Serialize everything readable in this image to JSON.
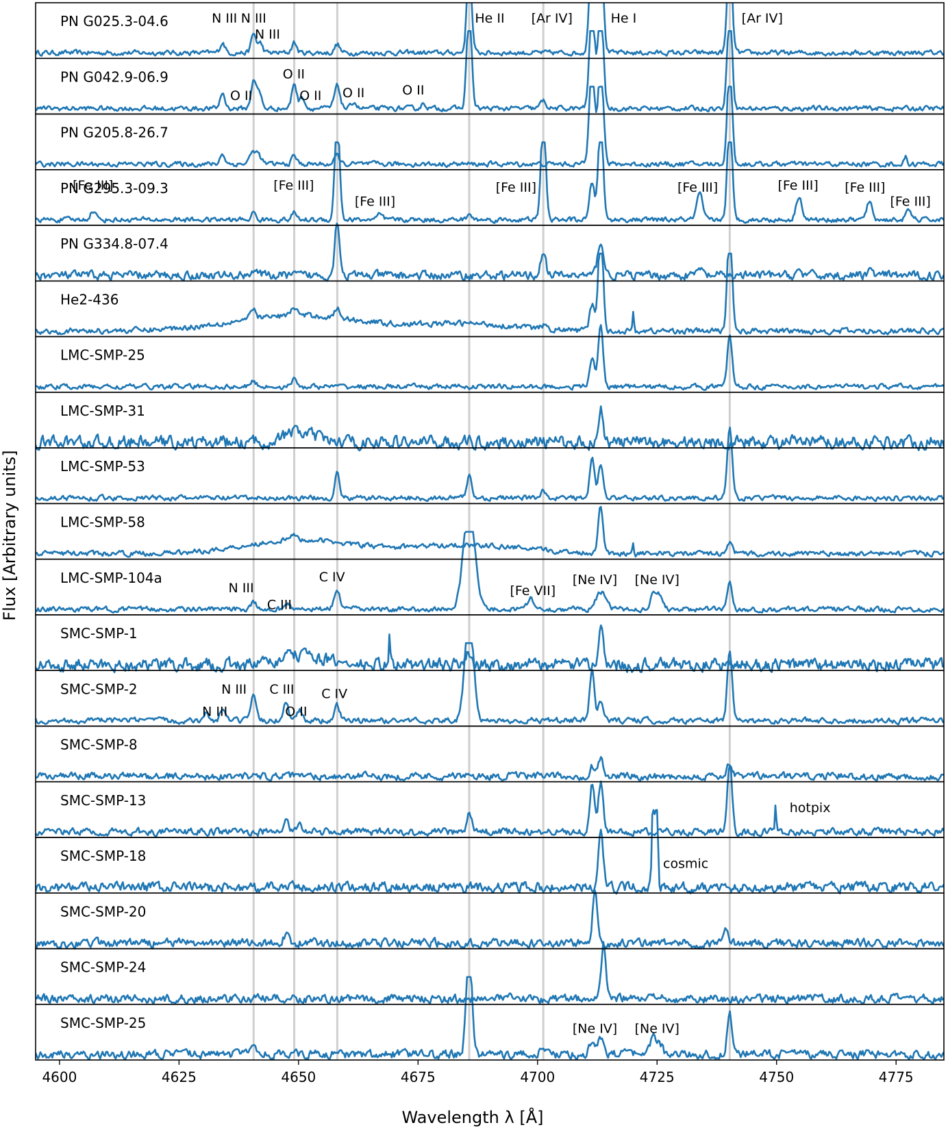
{
  "chart_data": {
    "type": "line",
    "xlabel": "Wavelength λ  [Å]",
    "ylabel": "Flux  [Arbitrary units]",
    "xlim": [
      4595,
      4785
    ],
    "xticks": [
      {
        "value": 4600,
        "label": "4600"
      },
      {
        "value": 4625,
        "label": "4625"
      },
      {
        "value": 4650,
        "label": "4650"
      },
      {
        "value": 4675,
        "label": "4675"
      },
      {
        "value": 4700,
        "label": "4700"
      },
      {
        "value": 4725,
        "label": "4725"
      },
      {
        "value": 4750,
        "label": "4750"
      },
      {
        "value": 4775,
        "label": "4775"
      }
    ],
    "reference_lines": [
      4640.6,
      4649.1,
      4658.1,
      4685.7,
      4701.2,
      4740.2
    ],
    "grid": false,
    "legend": "none",
    "line_color": "#1f77b4",
    "panels": [
      {
        "name": "PN G025.3-04.6",
        "noise": 0.035,
        "lines": [
          [
            4634.1,
            0.3,
            0.5
          ],
          [
            4640.6,
            0.55,
            0.5
          ],
          [
            4642.0,
            0.28,
            0.5
          ],
          [
            4649.1,
            0.3,
            0.5
          ],
          [
            4658.1,
            0.25,
            0.5
          ],
          [
            4685.7,
            2.5,
            0.5
          ],
          [
            4711.4,
            3.0,
            0.55
          ],
          [
            4713.2,
            3.0,
            0.55
          ],
          [
            4740.2,
            3.0,
            0.5
          ]
        ],
        "labels": [
          {
            "x": 4634.5,
            "text": "N III",
            "level": 0.84
          },
          {
            "x": 4640.6,
            "text": "N III",
            "level": 0.84
          },
          {
            "x": 4643.5,
            "text": "N III",
            "level": 0.55
          },
          {
            "x": 4690.0,
            "text": "He II",
            "level": 0.84
          },
          {
            "x": 4703.0,
            "text": "[Ar IV]",
            "level": 0.84
          },
          {
            "x": 4718.0,
            "text": "He I",
            "level": 0.84
          },
          {
            "x": 4747.0,
            "text": "[Ar IV]",
            "level": 0.84
          }
        ]
      },
      {
        "name": "PN G042.9-06.9",
        "noise": 0.035,
        "lines": [
          [
            4634.1,
            0.45,
            0.5
          ],
          [
            4640.6,
            0.85,
            0.5
          ],
          [
            4641.8,
            0.45,
            0.5
          ],
          [
            4649.1,
            0.75,
            0.5
          ],
          [
            4650.8,
            0.35,
            0.5
          ],
          [
            4658.1,
            0.65,
            0.6
          ],
          [
            4661.6,
            0.2,
            0.5
          ],
          [
            4676.2,
            0.15,
            0.5
          ],
          [
            4685.7,
            3.0,
            0.5
          ],
          [
            4701.2,
            0.22,
            0.6
          ],
          [
            4711.4,
            3.0,
            0.55
          ],
          [
            4713.2,
            3.0,
            0.55
          ],
          [
            4740.2,
            3.0,
            0.5
          ]
        ],
        "labels": [
          {
            "x": 4638.0,
            "text": "O II",
            "level": 0.45
          },
          {
            "x": 4649.0,
            "text": "O II",
            "level": 0.84
          },
          {
            "x": 4652.5,
            "text": "O II",
            "level": 0.45
          },
          {
            "x": 4661.5,
            "text": "O II",
            "level": 0.5
          },
          {
            "x": 4674.0,
            "text": "O II",
            "level": 0.55
          }
        ]
      },
      {
        "name": "PN G205.8-26.7",
        "noise": 0.035,
        "lines": [
          [
            4634.1,
            0.3,
            0.5
          ],
          [
            4640.6,
            0.35,
            0.8
          ],
          [
            4641.8,
            0.15,
            0.6
          ],
          [
            4649.1,
            0.25,
            0.5
          ],
          [
            4658.1,
            0.25,
            0.5
          ],
          [
            4711.4,
            3.0,
            0.55
          ],
          [
            4713.2,
            3.0,
            0.55
          ],
          [
            4740.2,
            3.0,
            0.5
          ],
          [
            4777.0,
            0.2,
            0.3
          ]
        ],
        "labels": []
      },
      {
        "name": "PN G295.3-09.3",
        "noise": 0.035,
        "lines": [
          [
            4607.0,
            0.25,
            0.6
          ],
          [
            4640.6,
            0.2,
            0.5
          ],
          [
            4649.1,
            0.2,
            0.5
          ],
          [
            4658.1,
            3.0,
            0.5
          ],
          [
            4667.0,
            0.15,
            0.5
          ],
          [
            4685.7,
            0.15,
            0.5
          ],
          [
            4701.2,
            3.0,
            0.5
          ],
          [
            4711.4,
            1.1,
            0.5
          ],
          [
            4713.2,
            3.0,
            0.5
          ],
          [
            4733.9,
            0.75,
            0.6
          ],
          [
            4740.2,
            3.0,
            0.5
          ],
          [
            4754.7,
            0.7,
            0.6
          ],
          [
            4769.4,
            0.5,
            0.6
          ],
          [
            4777.7,
            0.25,
            0.6
          ]
        ],
        "labels": [
          {
            "x": 4607.0,
            "text": "[Fe III]",
            "level": 0.84
          },
          {
            "x": 4649.0,
            "text": "[Fe III]",
            "level": 0.84
          },
          {
            "x": 4666.0,
            "text": "[Fe III]",
            "level": 0.55
          },
          {
            "x": 4695.5,
            "text": "[Fe III]",
            "level": 0.8
          },
          {
            "x": 4733.5,
            "text": "[Fe III]",
            "level": 0.8
          },
          {
            "x": 4754.5,
            "text": "[Fe III]",
            "level": 0.84
          },
          {
            "x": 4768.5,
            "text": "[Fe III]",
            "level": 0.8
          },
          {
            "x": 4778.0,
            "text": "[Fe III]",
            "level": 0.55
          }
        ]
      },
      {
        "name": "PN G334.8-07.4",
        "noise": 0.06,
        "lines": [
          [
            4640.6,
            0.15,
            0.8
          ],
          [
            4658.1,
            1.6,
            0.5
          ],
          [
            4701.2,
            0.75,
            0.5
          ],
          [
            4713.2,
            1.0,
            0.6
          ],
          [
            4733.9,
            0.2,
            0.5
          ],
          [
            4754.7,
            0.15,
            0.5
          ],
          [
            4769.4,
            0.15,
            0.5
          ]
        ],
        "labels": []
      },
      {
        "name": "He2-436",
        "noise": 0.04,
        "bumps": [
          [
            4650,
            0.45,
            14
          ],
          [
            4686,
            0.2,
            10
          ]
        ],
        "lines": [
          [
            4640.6,
            0.25,
            0.6
          ],
          [
            4649.1,
            0.25,
            0.6
          ],
          [
            4658.1,
            0.25,
            0.6
          ],
          [
            4701.2,
            0.1,
            0.5
          ],
          [
            4711.4,
            0.75,
            0.5
          ],
          [
            4713.2,
            3.0,
            0.5
          ],
          [
            4720.0,
            0.5,
            0.15
          ],
          [
            4740.2,
            3.0,
            0.5
          ]
        ],
        "labels": []
      },
      {
        "name": "LMC-SMP-25",
        "noise": 0.035,
        "lines": [
          [
            4640.6,
            0.15,
            0.6
          ],
          [
            4649.1,
            0.2,
            0.6
          ],
          [
            4711.4,
            0.85,
            0.5
          ],
          [
            4713.2,
            1.8,
            0.5
          ],
          [
            4740.2,
            1.5,
            0.5
          ]
        ],
        "labels": []
      },
      {
        "name": "LMC-SMP-31",
        "noise": 0.09,
        "bumps": [
          [
            4650,
            0.3,
            3.0
          ]
        ],
        "lines": [
          [
            4713.2,
            1.0,
            0.5
          ]
        ],
        "labels": []
      },
      {
        "name": "LMC-SMP-53",
        "noise": 0.035,
        "lines": [
          [
            4658.1,
            0.7,
            0.5
          ],
          [
            4685.7,
            0.65,
            0.5
          ],
          [
            4701.2,
            0.25,
            0.5
          ],
          [
            4711.4,
            1.1,
            0.5
          ],
          [
            4713.2,
            0.95,
            0.5
          ],
          [
            4740.2,
            2.0,
            0.5
          ]
        ],
        "labels": []
      },
      {
        "name": "LMC-SMP-58",
        "noise": 0.035,
        "bumps": [
          [
            4650,
            0.4,
            11
          ],
          [
            4685,
            0.25,
            12
          ]
        ],
        "lines": [
          [
            4649.1,
            0.15,
            0.6
          ],
          [
            4713.2,
            1.4,
            0.5
          ],
          [
            4720.0,
            0.35,
            0.15
          ],
          [
            4740.2,
            0.35,
            0.5
          ]
        ],
        "labels": []
      },
      {
        "name": "LMC-SMP-104a",
        "noise": 0.035,
        "lines": [
          [
            4640.6,
            0.18,
            0.6
          ],
          [
            4647.4,
            0.18,
            0.6
          ],
          [
            4658.1,
            0.55,
            0.6
          ],
          [
            4685.7,
            3.0,
            1.2
          ],
          [
            4698.5,
            0.35,
            0.6
          ],
          [
            4713.2,
            0.5,
            1.0
          ],
          [
            4724.2,
            0.5,
            0.6
          ],
          [
            4725.5,
            0.4,
            0.6
          ],
          [
            4740.2,
            0.8,
            0.5
          ]
        ],
        "labels": [
          {
            "x": 4638.0,
            "text": "N III",
            "level": 0.6
          },
          {
            "x": 4646.0,
            "text": "C III",
            "level": 0.3
          },
          {
            "x": 4657.0,
            "text": "C IV",
            "level": 0.8
          },
          {
            "x": 4699.0,
            "text": "[Fe VII]",
            "level": 0.55
          },
          {
            "x": 4712.0,
            "text": "[Ne IV]",
            "level": 0.75
          },
          {
            "x": 4725.0,
            "text": "[Ne IV]",
            "level": 0.75
          }
        ]
      },
      {
        "name": "SMC-SMP-1",
        "noise": 0.09,
        "bumps": [
          [
            4651,
            0.3,
            4
          ]
        ],
        "lines": [
          [
            4669.0,
            0.8,
            0.15
          ],
          [
            4685.7,
            0.4,
            0.5
          ],
          [
            4713.2,
            1.2,
            0.5
          ]
        ],
        "labels": []
      },
      {
        "name": "SMC-SMP-2",
        "noise": 0.04,
        "lines": [
          [
            4630.8,
            0.2,
            0.5
          ],
          [
            4634.1,
            0.3,
            0.5
          ],
          [
            4640.6,
            0.7,
            0.5
          ],
          [
            4647.4,
            0.6,
            0.5
          ],
          [
            4650.2,
            0.3,
            0.6
          ],
          [
            4658.1,
            0.45,
            0.5
          ],
          [
            4685.7,
            3.0,
            0.9
          ],
          [
            4711.4,
            1.4,
            0.5
          ],
          [
            4713.2,
            0.6,
            0.5
          ],
          [
            4740.2,
            2.0,
            0.5
          ]
        ],
        "labels": [
          {
            "x": 4632.5,
            "text": "N III",
            "level": 0.38
          },
          {
            "x": 4636.5,
            "text": "N III",
            "level": 0.78
          },
          {
            "x": 4646.5,
            "text": "C III",
            "level": 0.78
          },
          {
            "x": 4649.5,
            "text": "O II",
            "level": 0.38
          },
          {
            "x": 4657.5,
            "text": "C IV",
            "level": 0.7
          }
        ]
      },
      {
        "name": "SMC-SMP-8",
        "noise": 0.05,
        "lines": [
          [
            4711.4,
            0.3,
            0.5
          ],
          [
            4713.2,
            0.55,
            0.5
          ],
          [
            4740.2,
            0.35,
            0.5
          ]
        ],
        "labels": []
      },
      {
        "name": "SMC-SMP-13",
        "noise": 0.05,
        "lines": [
          [
            4647.4,
            0.35,
            0.5
          ],
          [
            4650.2,
            0.3,
            0.5
          ],
          [
            4685.7,
            0.6,
            0.5
          ],
          [
            4711.4,
            1.4,
            0.5
          ],
          [
            4713.2,
            1.4,
            0.5
          ],
          [
            4740.2,
            2.0,
            0.5
          ],
          [
            4749.8,
            0.9,
            0.15
          ]
        ],
        "labels": [
          {
            "x": 4757.0,
            "text": "hotpix",
            "level": 0.65
          }
        ]
      },
      {
        "name": "SMC-SMP-18",
        "noise": 0.07,
        "lines": [
          [
            4713.2,
            1.6,
            0.5
          ],
          [
            4724.2,
            3.0,
            0.25
          ],
          [
            4724.9,
            3.0,
            0.25
          ]
        ],
        "labels": [
          {
            "x": 4731.0,
            "text": "cosmic",
            "level": 0.65
          }
        ]
      },
      {
        "name": "SMC-SMP-20",
        "noise": 0.06,
        "lines": [
          [
            4647.4,
            0.25,
            0.6
          ],
          [
            4712.0,
            1.4,
            0.5
          ],
          [
            4739.4,
            0.35,
            0.5
          ]
        ],
        "labels": []
      },
      {
        "name": "SMC-SMP-24",
        "noise": 0.06,
        "lines": [
          [
            4713.8,
            1.6,
            0.5
          ]
        ],
        "labels": []
      },
      {
        "name": "SMC-SMP-25",
        "noise": 0.06,
        "lines": [
          [
            4640.6,
            0.2,
            0.6
          ],
          [
            4685.7,
            3.0,
            0.6
          ],
          [
            4701.2,
            0.15,
            0.6
          ],
          [
            4711.4,
            0.4,
            0.6
          ],
          [
            4713.2,
            0.45,
            0.6
          ],
          [
            4724.2,
            0.45,
            0.6
          ],
          [
            4725.5,
            0.35,
            0.6
          ],
          [
            4740.2,
            1.2,
            0.5
          ]
        ],
        "labels": [
          {
            "x": 4712.0,
            "text": "[Ne IV]",
            "level": 0.68
          },
          {
            "x": 4725.0,
            "text": "[Ne IV]",
            "level": 0.68
          }
        ]
      }
    ]
  }
}
